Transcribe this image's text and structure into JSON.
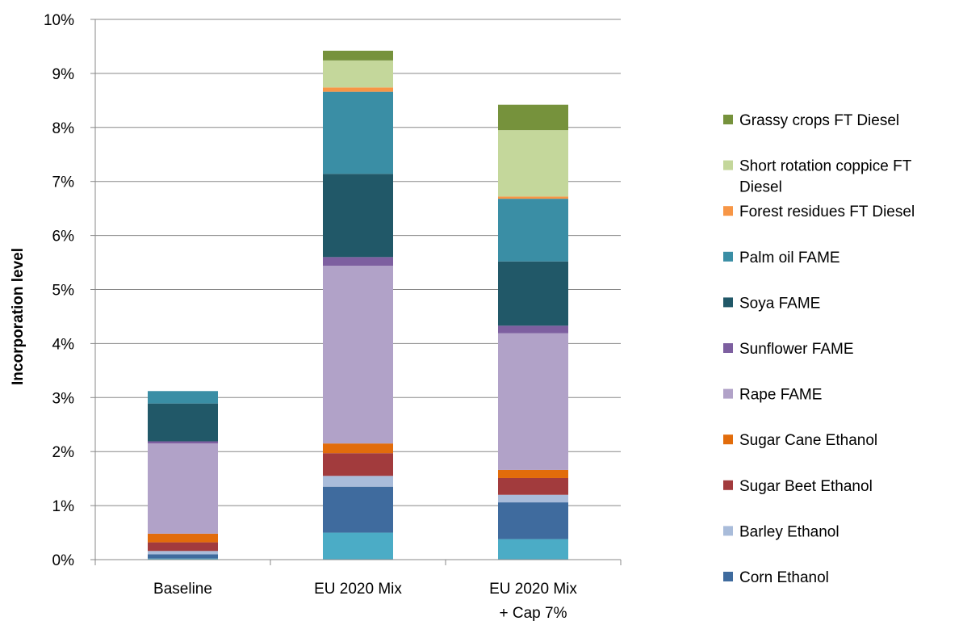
{
  "chart_data": {
    "type": "bar",
    "stacked": true,
    "title": "",
    "xlabel": "",
    "ylabel": "Incorporation level",
    "ylim": [
      0,
      10
    ],
    "y_unit": "%",
    "y_ticks": [
      "0%",
      "1%",
      "2%",
      "3%",
      "4%",
      "5%",
      "6%",
      "7%",
      "8%",
      "9%",
      "10%"
    ],
    "grid": true,
    "legend_position": "right",
    "categories": [
      [
        "Baseline"
      ],
      [
        "EU 2020 Mix"
      ],
      [
        "EU 2020 Mix",
        "+ Cap 7%"
      ]
    ],
    "series": [
      {
        "name": "",
        "color": "#4BACC6",
        "values": [
          0.02,
          0.5,
          0.38
        ]
      },
      {
        "name": "Corn Ethanol",
        "color": "#3F6B9E",
        "values": [
          0.08,
          0.85,
          0.68
        ]
      },
      {
        "name": "Barley Ethanol",
        "color": "#A9BCDA",
        "values": [
          0.06,
          0.2,
          0.14
        ]
      },
      {
        "name": "Sugar Beet Ethanol",
        "color": "#A23B3D",
        "values": [
          0.16,
          0.42,
          0.31
        ]
      },
      {
        "name": "Sugar Cane Ethanol",
        "color": "#E26C0B",
        "values": [
          0.16,
          0.18,
          0.15
        ]
      },
      {
        "name": "Rape FAME",
        "color": "#B1A2C8",
        "values": [
          1.67,
          3.29,
          2.53
        ]
      },
      {
        "name": "Sunflower FAME",
        "color": "#7D5FA0",
        "values": [
          0.04,
          0.16,
          0.14
        ]
      },
      {
        "name": "Soya FAME",
        "color": "#215868",
        "values": [
          0.7,
          1.54,
          1.19
        ]
      },
      {
        "name": "Palm oil FAME",
        "color": "#3A8EA5",
        "values": [
          0.23,
          1.52,
          1.16
        ]
      },
      {
        "name": "Forest residues FT Diesel",
        "color": "#F79646",
        "values": [
          0,
          0.08,
          0.04
        ]
      },
      {
        "name": "Short rotation coppice FT Diesel",
        "color": "#C4D79B",
        "values": [
          0,
          0.5,
          1.23
        ]
      },
      {
        "name": "Grassy crops FT Diesel",
        "color": "#76923C",
        "values": [
          0,
          0.18,
          0.47
        ]
      }
    ],
    "legend": [
      {
        "lines": [
          "Grassy crops FT Diesel"
        ],
        "color": "#76923C"
      },
      {
        "lines": [
          "Short rotation coppice FT",
          "Diesel"
        ],
        "color": "#C4D79B"
      },
      {
        "lines": [
          "Forest residues FT Diesel"
        ],
        "color": "#F79646"
      },
      {
        "lines": [
          "Palm oil FAME"
        ],
        "color": "#3A8EA5"
      },
      {
        "lines": [
          "Soya FAME"
        ],
        "color": "#215868"
      },
      {
        "lines": [
          "Sunflower FAME"
        ],
        "color": "#7D5FA0"
      },
      {
        "lines": [
          "Rape FAME"
        ],
        "color": "#B1A2C8"
      },
      {
        "lines": [
          "Sugar Cane Ethanol"
        ],
        "color": "#E26C0B"
      },
      {
        "lines": [
          "Sugar Beet Ethanol"
        ],
        "color": "#A23B3D"
      },
      {
        "lines": [
          "Barley Ethanol"
        ],
        "color": "#A9BCDA"
      },
      {
        "lines": [
          "Corn Ethanol"
        ],
        "color": "#3F6B9E"
      }
    ]
  }
}
